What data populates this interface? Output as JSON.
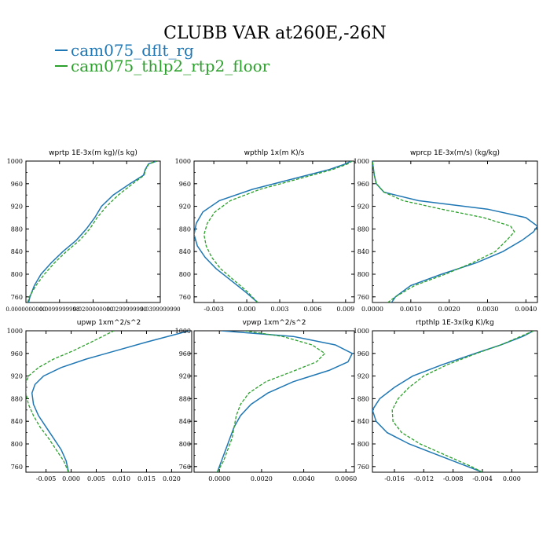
{
  "title": "CLUBB VAR at260E,-26N",
  "legend": [
    {
      "name": "cam075_dflt_rg",
      "color": "#1f77b4"
    },
    {
      "name": "cam075_thlp2_rtp2_floor",
      "color": "#2ca02c"
    }
  ],
  "chart_data": [
    {
      "type": "line",
      "title": "wprtp  1E-3x(m kg)/(s kg)",
      "xlim": [
        0.0,
        0.04
      ],
      "ylim": [
        1000,
        750
      ],
      "xticks": [
        0.0,
        0.01,
        0.02,
        0.03,
        0.04
      ],
      "xticklabels": [
        "0.0000000000",
        "0.0099999998",
        "0.0200000000",
        "0.0299999990",
        "0.0399999990"
      ],
      "yticks": [
        760,
        800,
        840,
        880,
        920,
        960,
        1000
      ],
      "series": [
        {
          "y": [
            750,
            760,
            780,
            800,
            820,
            840,
            860,
            880,
            900,
            920,
            940,
            960,
            975,
            985,
            995,
            1000
          ],
          "x": [
            0.0008,
            0.0012,
            0.0025,
            0.0045,
            0.0075,
            0.011,
            0.015,
            0.018,
            0.0205,
            0.0225,
            0.026,
            0.031,
            0.035,
            0.0355,
            0.0365,
            0.039
          ]
        },
        {
          "y": [
            750,
            760,
            780,
            800,
            820,
            840,
            860,
            880,
            900,
            920,
            940,
            960,
            975,
            985,
            995,
            1000
          ],
          "x": [
            0.0005,
            0.001,
            0.003,
            0.0055,
            0.0085,
            0.012,
            0.016,
            0.019,
            0.0212,
            0.024,
            0.0275,
            0.0318,
            0.0352,
            0.0356,
            0.0366,
            0.039
          ]
        }
      ]
    },
    {
      "type": "line",
      "title": "wpthlp  1x(m K)/s",
      "xlim": [
        -0.0048,
        0.0098
      ],
      "ylim": [
        1000,
        750
      ],
      "xticks": [
        -0.003,
        0.0,
        0.003,
        0.006,
        0.009
      ],
      "xticklabels": [
        "-0.003",
        "0.000",
        "0.003",
        "0.006",
        "0.009"
      ],
      "yticks": [
        760,
        800,
        840,
        880,
        920,
        960,
        1000
      ],
      "series": [
        {
          "y": [
            750,
            770,
            790,
            810,
            830,
            850,
            870,
            890,
            910,
            930,
            950,
            970,
            985,
            995,
            1000
          ],
          "x": [
            0.001,
            -0.0002,
            -0.0015,
            -0.0028,
            -0.0038,
            -0.0045,
            -0.0048,
            -0.0046,
            -0.004,
            -0.0025,
            0.0005,
            0.0045,
            0.0075,
            0.009,
            0.0095
          ]
        },
        {
          "y": [
            750,
            770,
            790,
            810,
            830,
            850,
            870,
            890,
            910,
            930,
            950,
            970,
            985,
            995,
            1000
          ],
          "x": [
            0.001,
            0.0,
            -0.0012,
            -0.0024,
            -0.0032,
            -0.0037,
            -0.0039,
            -0.0036,
            -0.0029,
            -0.0015,
            0.0012,
            0.005,
            0.0078,
            0.0092,
            0.0096
          ]
        }
      ]
    },
    {
      "type": "line",
      "title": "wprcp  1E-3x(m/s) (kg/kg)",
      "xlim": [
        0.0,
        0.0043
      ],
      "ylim": [
        1000,
        750
      ],
      "xticks": [
        0.0,
        0.001,
        0.002,
        0.003,
        0.004
      ],
      "xticklabels": [
        "0.0000",
        "0.0010",
        "0.0020",
        "0.0030",
        "0.0040"
      ],
      "yticks": [
        760,
        800,
        840,
        880,
        920,
        960,
        1000
      ],
      "series": [
        {
          "y": [
            750,
            760,
            780,
            800,
            820,
            840,
            860,
            875,
            885,
            900,
            915,
            930,
            945,
            960,
            975,
            1000
          ],
          "x": [
            0.0005,
            0.0006,
            0.001,
            0.0018,
            0.0027,
            0.0034,
            0.0039,
            0.0042,
            0.0043,
            0.004,
            0.003,
            0.0012,
            0.0003,
            0.0001,
            5e-05,
            0.0
          ]
        },
        {
          "y": [
            750,
            760,
            780,
            800,
            820,
            840,
            860,
            875,
            885,
            900,
            915,
            930,
            945,
            960,
            975,
            1000
          ],
          "x": [
            0.0004,
            0.0006,
            0.0011,
            0.0019,
            0.0026,
            0.0032,
            0.0035,
            0.0037,
            0.0036,
            0.0029,
            0.0018,
            0.0008,
            0.0003,
            0.0001,
            5e-05,
            0.0
          ]
        }
      ]
    },
    {
      "type": "line",
      "title": "upwp  1xm^2/s^2",
      "xlim": [
        -0.009,
        0.024
      ],
      "ylim": [
        1000,
        750
      ],
      "xticks": [
        -0.005,
        0.0,
        0.005,
        0.01,
        0.015,
        0.02
      ],
      "xticklabels": [
        "-0.005",
        "0.000",
        "0.005",
        "0.010",
        "0.015",
        "0.020"
      ],
      "yticks": [
        760,
        800,
        840,
        880,
        920,
        960,
        1000
      ],
      "series": [
        {
          "y": [
            750,
            770,
            790,
            810,
            830,
            850,
            870,
            890,
            905,
            920,
            935,
            950,
            965,
            980,
            1000
          ],
          "x": [
            -0.0005,
            -0.001,
            -0.002,
            -0.0035,
            -0.005,
            -0.0065,
            -0.0075,
            -0.0078,
            -0.0072,
            -0.0055,
            -0.002,
            0.003,
            0.009,
            0.015,
            0.0235
          ]
        },
        {
          "y": [
            750,
            770,
            790,
            810,
            830,
            850,
            870,
            890,
            905,
            920,
            935,
            950,
            965,
            980,
            1000
          ],
          "x": [
            -0.0005,
            -0.0015,
            -0.003,
            -0.0045,
            -0.0062,
            -0.0075,
            -0.0085,
            -0.009,
            -0.0091,
            -0.0085,
            -0.0065,
            -0.0035,
            0.0005,
            0.004,
            0.0085
          ]
        }
      ]
    },
    {
      "type": "line",
      "title": "vpwp  1xm^2/s^2",
      "xlim": [
        -0.0012,
        0.0064
      ],
      "ylim": [
        1000,
        750
      ],
      "xticks": [
        0.0,
        0.002,
        0.004,
        0.006
      ],
      "xticklabels": [
        "0.0000",
        "0.0020",
        "0.0040",
        "0.0060"
      ],
      "yticks": [
        760,
        800,
        840,
        880,
        920,
        960,
        1000
      ],
      "series": [
        {
          "y": [
            750,
            770,
            790,
            810,
            830,
            850,
            870,
            890,
            910,
            930,
            945,
            960,
            975,
            990,
            1000
          ],
          "x": [
            -0.0001,
            0.0001,
            0.0003,
            0.0005,
            0.0007,
            0.001,
            0.0015,
            0.0023,
            0.0035,
            0.0052,
            0.0061,
            0.0063,
            0.0055,
            0.0035,
            0.0001
          ]
        },
        {
          "y": [
            750,
            770,
            790,
            810,
            830,
            850,
            870,
            890,
            910,
            930,
            945,
            960,
            975,
            990,
            1000
          ],
          "x": [
            -0.0001,
            0.0002,
            0.0004,
            0.0006,
            0.0007,
            0.0008,
            0.001,
            0.0014,
            0.0022,
            0.0036,
            0.0046,
            0.005,
            0.0044,
            0.003,
            0.0012
          ]
        }
      ]
    },
    {
      "type": "line",
      "title": "rtpthlp  1E-3x(kg K)/kg",
      "xlim": [
        -0.019,
        0.0035
      ],
      "ylim": [
        1000,
        750
      ],
      "xticks": [
        -0.016,
        -0.012,
        -0.008,
        -0.004,
        0.0
      ],
      "xticklabels": [
        "-0.016",
        "-0.012",
        "-0.008",
        "-0.004",
        "0.000"
      ],
      "yticks": [
        760,
        800,
        840,
        880,
        920,
        960,
        1000
      ],
      "series": [
        {
          "y": [
            750,
            760,
            780,
            800,
            820,
            840,
            860,
            880,
            900,
            920,
            940,
            960,
            975,
            990,
            1000
          ],
          "x": [
            -0.004,
            -0.006,
            -0.01,
            -0.014,
            -0.017,
            -0.0185,
            -0.019,
            -0.018,
            -0.016,
            -0.0135,
            -0.0095,
            -0.005,
            -0.0015,
            0.0015,
            0.003
          ]
        },
        {
          "y": [
            750,
            760,
            780,
            800,
            820,
            840,
            860,
            880,
            900,
            920,
            940,
            960,
            975,
            990,
            1000
          ],
          "x": [
            -0.004,
            -0.0055,
            -0.009,
            -0.0125,
            -0.015,
            -0.0162,
            -0.0163,
            -0.0155,
            -0.014,
            -0.012,
            -0.0088,
            -0.0048,
            -0.0015,
            0.0012,
            0.003
          ]
        }
      ]
    }
  ]
}
